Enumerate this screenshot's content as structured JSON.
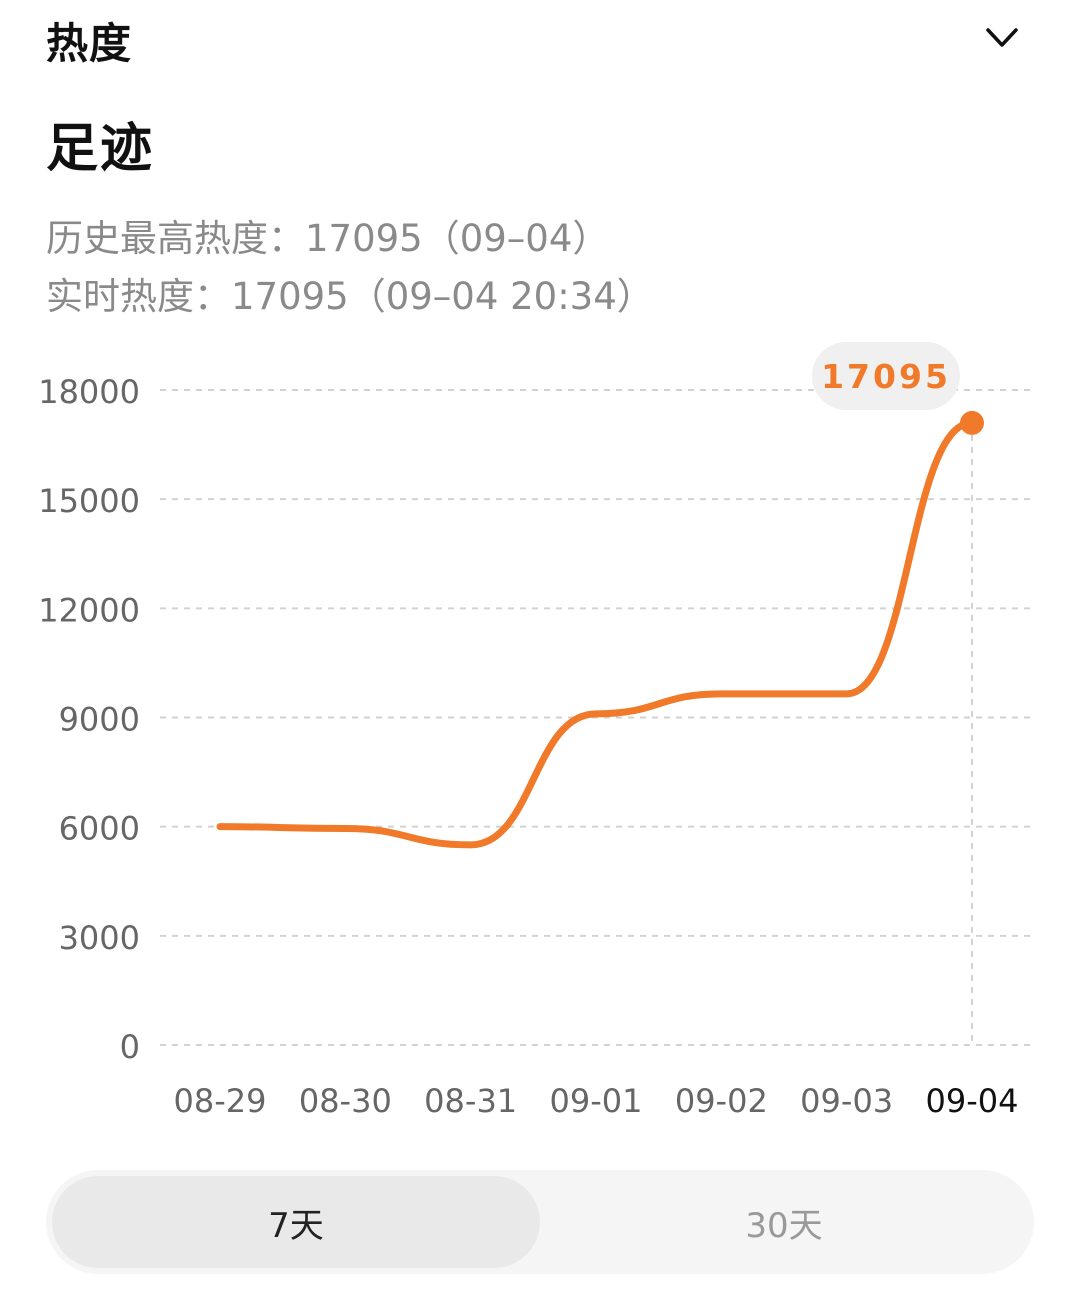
{
  "header": {
    "title": "热度"
  },
  "section": {
    "title": "足迹"
  },
  "stats": {
    "history_high": "历史最高热度：17095（09–04）",
    "realtime": "实时热度：17095（09–04 20:34）"
  },
  "range_toggle": {
    "options": [
      "7天",
      "30天"
    ],
    "selected": "7天"
  },
  "chart_data": {
    "type": "line",
    "categories": [
      "08-29",
      "08-30",
      "08-31",
      "09-01",
      "09-02",
      "09-03",
      "09-04"
    ],
    "series": [
      {
        "values": [
          6000,
          5950,
          5500,
          9100,
          9650,
          9650,
          17095
        ]
      }
    ],
    "y_ticks": [
      "0",
      "3000",
      "6000",
      "9000",
      "12000",
      "15000",
      "18000"
    ],
    "ylim": [
      0,
      18000
    ],
    "highlight": {
      "category": "09-04",
      "label": "17095"
    },
    "grid": true,
    "line_color": "#f07a2a",
    "highlight_bg": "#f0f0f0"
  }
}
